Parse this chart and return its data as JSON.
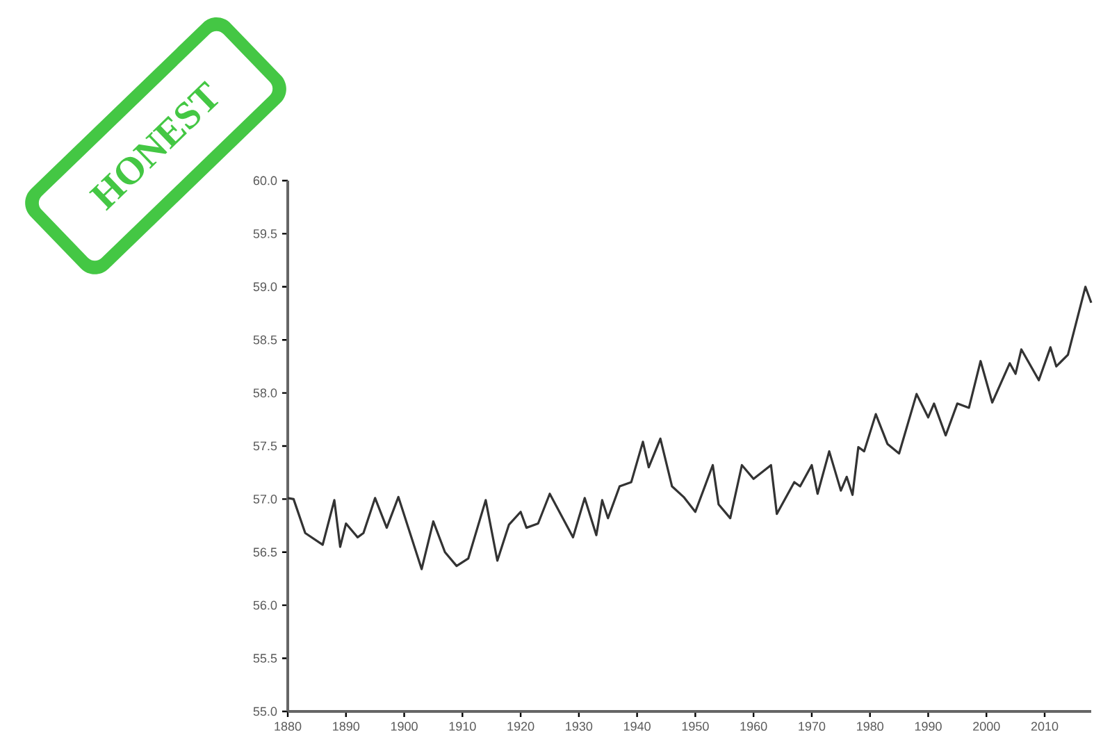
{
  "chart_data": {
    "type": "line",
    "annotations": [
      "HONEST"
    ],
    "x": [
      1880,
      1881,
      1883,
      1886,
      1888,
      1889,
      1890,
      1892,
      1893,
      1895,
      1897,
      1899,
      1903,
      1905,
      1907,
      1909,
      1911,
      1914,
      1916,
      1918,
      1920,
      1921,
      1923,
      1925,
      1929,
      1931,
      1933,
      1934,
      1935,
      1937,
      1939,
      1941,
      1942,
      1944,
      1946,
      1948,
      1950,
      1953,
      1954,
      1956,
      1958,
      1960,
      1963,
      1964,
      1967,
      1968,
      1970,
      1971,
      1973,
      1975,
      1976,
      1977,
      1978,
      1979,
      1981,
      1983,
      1985,
      1988,
      1990,
      1991,
      1993,
      1995,
      1997,
      1999,
      2001,
      2004,
      2005,
      2006,
      2009,
      2011,
      2012,
      2014,
      2017,
      2018
    ],
    "series": [
      {
        "color": "#333333",
        "values": [
          57.01,
          57.0,
          56.68,
          56.57,
          56.99,
          56.55,
          56.77,
          56.64,
          56.68,
          57.01,
          56.73,
          57.02,
          56.34,
          56.79,
          56.5,
          56.37,
          56.44,
          56.99,
          56.42,
          56.76,
          56.88,
          56.73,
          56.77,
          57.05,
          56.64,
          57.01,
          56.66,
          56.99,
          56.82,
          57.12,
          57.16,
          57.54,
          57.3,
          57.57,
          57.12,
          57.02,
          56.88,
          57.32,
          56.95,
          56.82,
          57.32,
          57.19,
          57.32,
          56.86,
          57.16,
          57.12,
          57.32,
          57.05,
          57.45,
          57.08,
          57.21,
          57.04,
          57.49,
          57.45,
          57.8,
          57.52,
          57.43,
          57.99,
          57.77,
          57.9,
          57.6,
          57.9,
          57.86,
          58.3,
          57.91,
          58.28,
          58.18,
          58.41,
          58.12,
          58.43,
          58.25,
          58.36,
          59.0,
          58.85
        ]
      }
    ],
    "xlim": [
      1880,
      2018
    ],
    "xticks": [
      1880,
      1890,
      1900,
      1910,
      1920,
      1930,
      1940,
      1950,
      1960,
      1970,
      1980,
      1990,
      2000,
      2010
    ],
    "ylim": [
      55.0,
      60.0
    ],
    "yticks": [
      {
        "value": 55,
        "label": "55.0"
      },
      {
        "value": 55.5,
        "label": "55.5"
      },
      {
        "value": 56,
        "label": "56.0"
      },
      {
        "value": 56.5,
        "label": "56.5"
      },
      {
        "value": 57,
        "label": "57.0"
      },
      {
        "value": 57.5,
        "label": "57.5"
      },
      {
        "value": 58,
        "label": "58.0"
      },
      {
        "value": 58.5,
        "label": "58.5"
      },
      {
        "value": 59,
        "label": "59.0"
      },
      {
        "value": 59.5,
        "label": "59.5"
      },
      {
        "value": 60,
        "label": "60.0"
      }
    ],
    "grid": false,
    "marker": "none",
    "line_style": "solid"
  }
}
